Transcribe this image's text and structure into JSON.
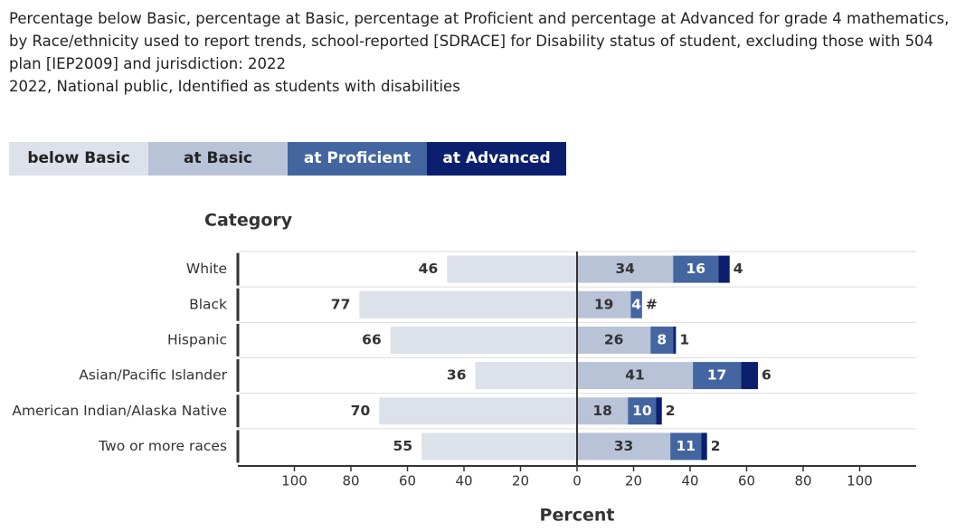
{
  "chart_data": {
    "type": "diverging-bar",
    "title": "Percentage below Basic, percentage at Basic, percentage at Proficient and percentage at Advanced for grade 4 mathematics, by Race/ethnicity used to report trends, school-reported [SDRACE] for Disability status of student, excluding those with 504 plan [IEP2009] and jurisdiction: 2022",
    "subtitle": "2022, National public, Identified as students with disabilities",
    "y_label": "Category",
    "x_label": "Percent",
    "categories": [
      "White",
      "Black",
      "Hispanic",
      "Asian/Pacific Islander",
      "American Indian/Alaska Native",
      "Two or more races"
    ],
    "series": [
      {
        "name": "below Basic",
        "color": "#dde1ea",
        "values": [
          46,
          77,
          66,
          36,
          70,
          55
        ]
      },
      {
        "name": "at Basic",
        "color": "#b9c3d8",
        "values": [
          34,
          19,
          26,
          41,
          18,
          33
        ]
      },
      {
        "name": "at Proficient",
        "color": "#4466a0",
        "values": [
          16,
          4,
          8,
          17,
          10,
          11
        ]
      },
      {
        "name": "at Advanced",
        "color": "#0b1f6e",
        "values": [
          4,
          0,
          1,
          6,
          2,
          2
        ],
        "value_labels": [
          "4",
          "#",
          "1",
          "6",
          "2",
          "2"
        ]
      }
    ],
    "xlim": [
      -120,
      120
    ],
    "xticks": [
      {
        "value": -100,
        "label": "100"
      },
      {
        "value": -80,
        "label": "80"
      },
      {
        "value": -60,
        "label": "60"
      },
      {
        "value": -40,
        "label": "40"
      },
      {
        "value": -20,
        "label": "20"
      },
      0,
      20,
      40,
      60,
      80,
      100
    ]
  }
}
